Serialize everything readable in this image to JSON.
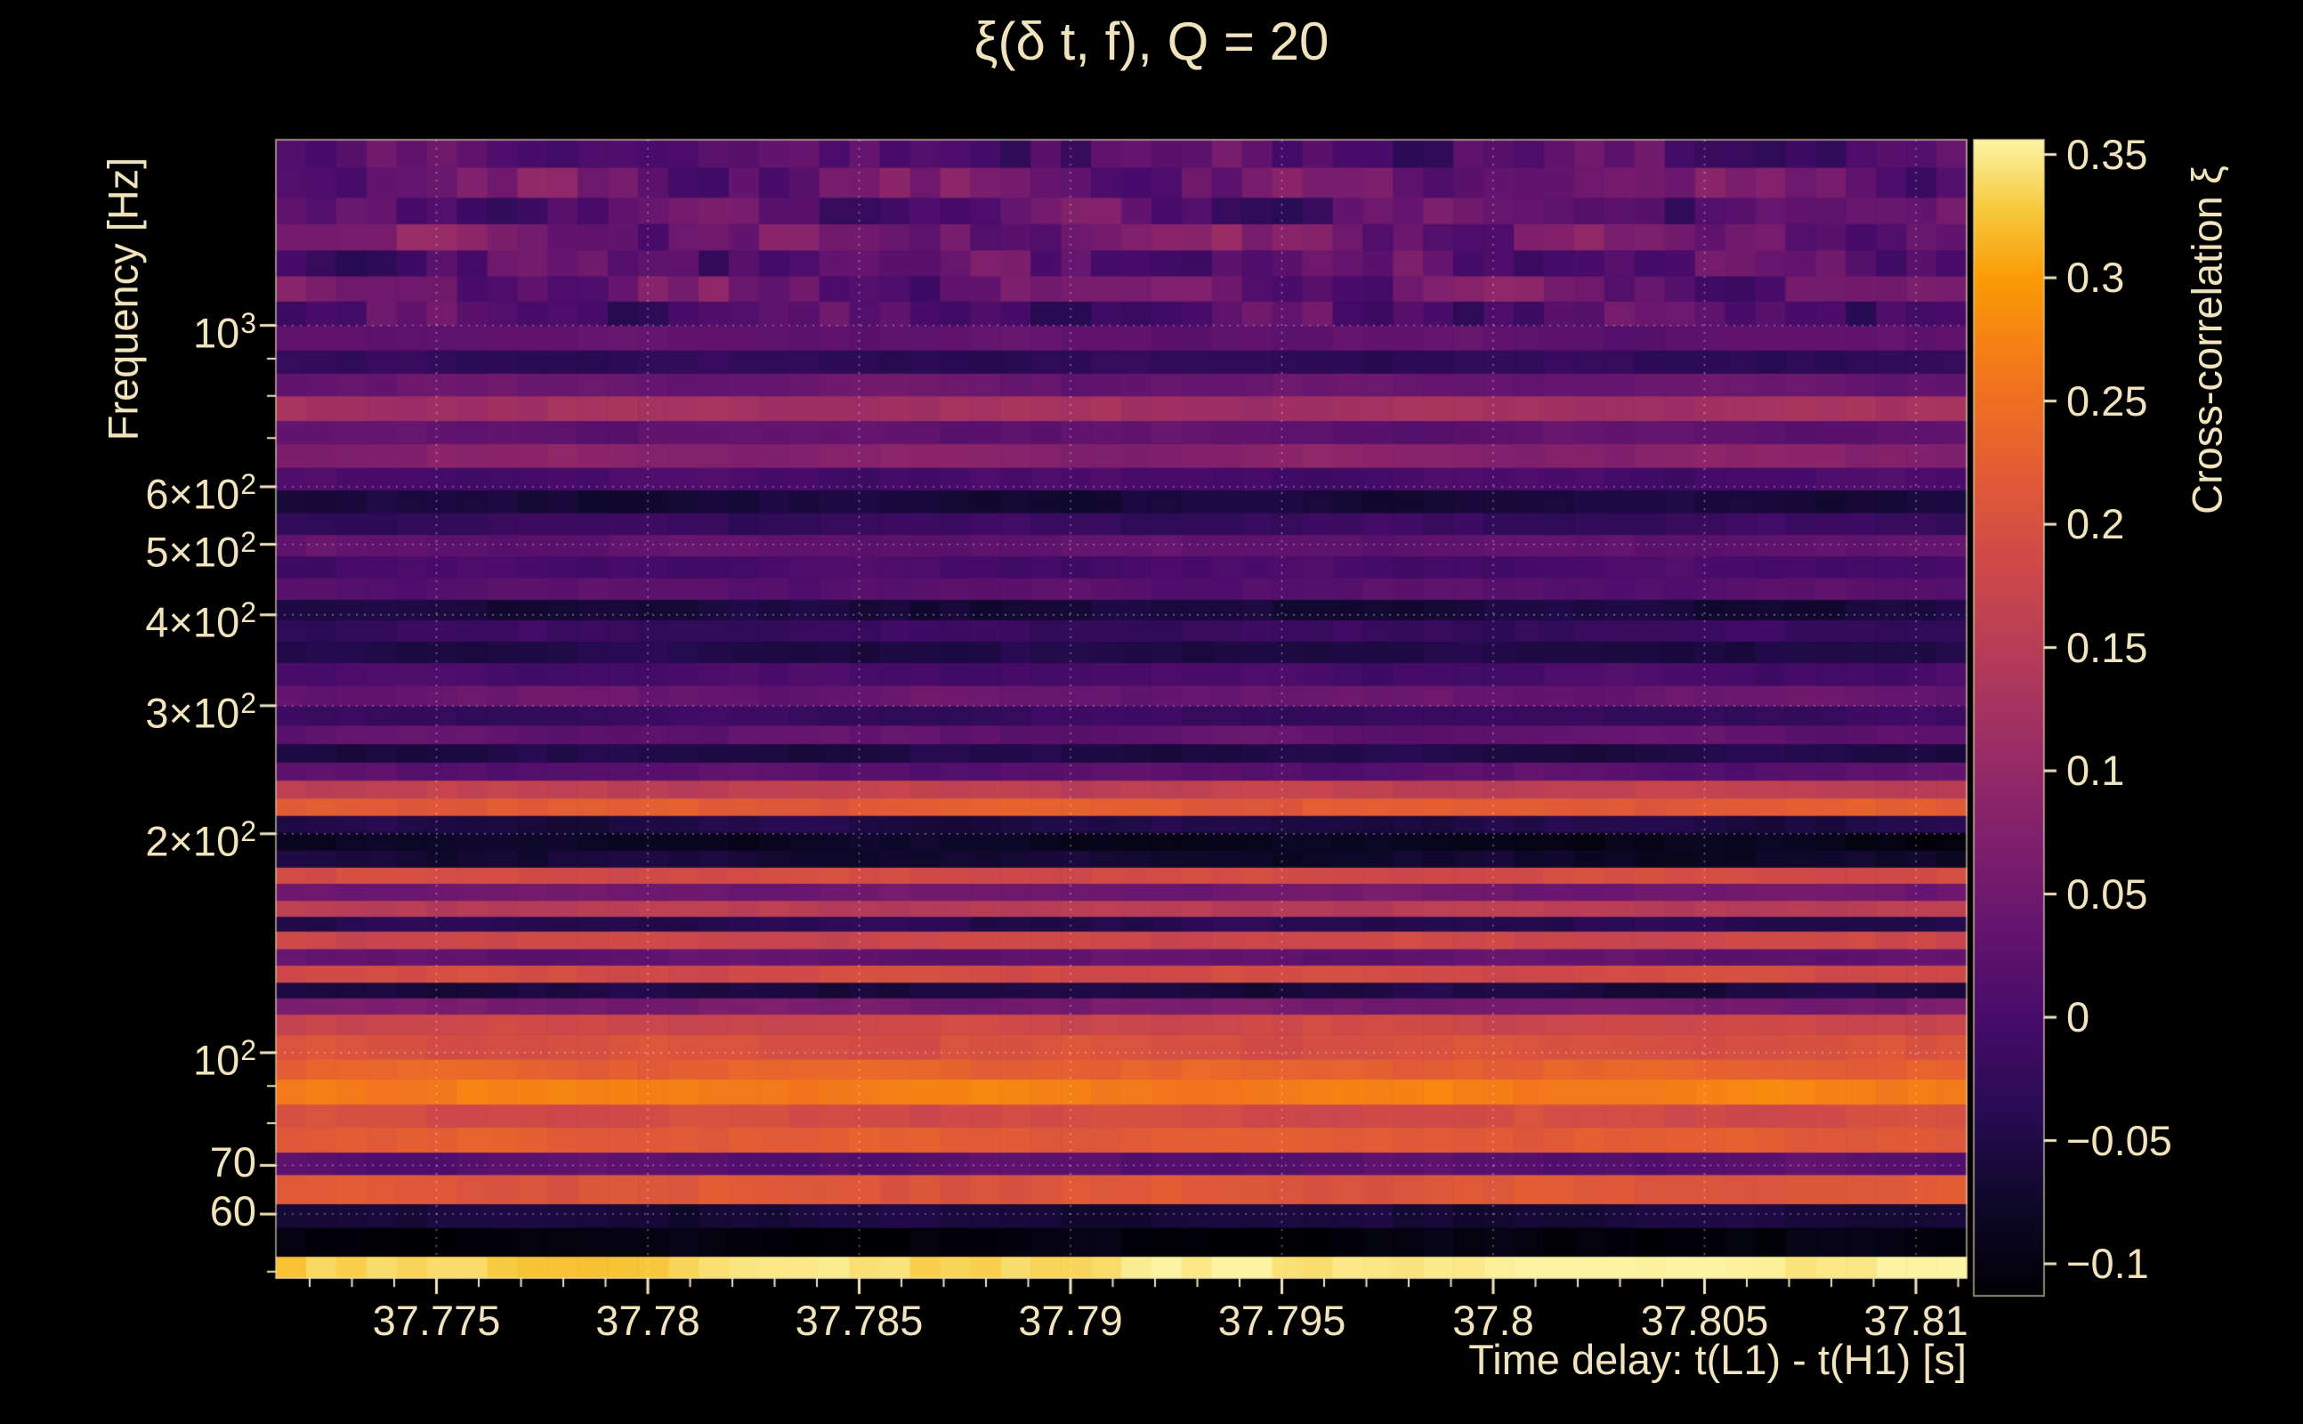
{
  "window": {
    "background": "#000000",
    "text_color": "#f1e4bd"
  },
  "chart_data": {
    "type": "heatmap",
    "title": "ξ(δ t, f), Q = 20",
    "xlabel": "Time delay: t(L1) - t(H1) [s]",
    "ylabel": "Frequency [Hz]",
    "colorbar_label": "Cross-correlation ξ",
    "x_range": [
      37.7712,
      37.8112
    ],
    "y_range": [
      49,
      1800
    ],
    "y_scale": "log",
    "grid": true,
    "x_ticks": [
      37.775,
      37.78,
      37.785,
      37.79,
      37.795,
      37.8,
      37.805,
      37.81
    ],
    "x_tick_labels": [
      "37.775",
      "37.78",
      "37.785",
      "37.79",
      "37.795",
      "37.8",
      "37.805",
      "37.81"
    ],
    "x_minor_step": 0.001,
    "y_ticks": [
      {
        "value": 1000,
        "base": "10",
        "exp": "3"
      },
      {
        "value": 600,
        "base": "6×10",
        "exp": "2"
      },
      {
        "value": 500,
        "base": "5×10",
        "exp": "2"
      },
      {
        "value": 400,
        "base": "4×10",
        "exp": "2"
      },
      {
        "value": 300,
        "base": "3×10",
        "exp": "2"
      },
      {
        "value": 200,
        "base": "2×10",
        "exp": "2"
      },
      {
        "value": 100,
        "base": "10",
        "exp": "2"
      },
      {
        "value": 70,
        "base": "70",
        "exp": ""
      },
      {
        "value": 60,
        "base": "60",
        "exp": ""
      }
    ],
    "y_minor_ticks": [
      50,
      60,
      70,
      80,
      90,
      100,
      200,
      300,
      400,
      500,
      600,
      700,
      800,
      900,
      1000
    ],
    "colorbar": {
      "range": [
        -0.113,
        0.356
      ],
      "ticks": [
        0.35,
        0.3,
        0.25,
        0.2,
        0.15,
        0.1,
        0.05,
        0,
        -0.05,
        -0.1
      ],
      "tick_labels": [
        "0.35",
        "0.3",
        "0.25",
        "0.2",
        "0.15",
        "0.1",
        "0.05",
        "0",
        "−0.05",
        "−0.1"
      ]
    },
    "colormap": [
      [
        0.0,
        "#000004"
      ],
      [
        0.08,
        "#0d0829"
      ],
      [
        0.16,
        "#280b53"
      ],
      [
        0.24,
        "#470b6a"
      ],
      [
        0.32,
        "#65156e"
      ],
      [
        0.4,
        "#81206c"
      ],
      [
        0.48,
        "#9c2e64"
      ],
      [
        0.56,
        "#b73d57"
      ],
      [
        0.64,
        "#d04a47"
      ],
      [
        0.72,
        "#e45e33"
      ],
      [
        0.8,
        "#f3771b"
      ],
      [
        0.88,
        "#fb9b06"
      ],
      [
        0.94,
        "#f7c93c"
      ],
      [
        1.0,
        "#fcf4a3"
      ]
    ],
    "time_bins": 56,
    "noise": {
      "low_amp": 0.013,
      "high_amp": 0.06,
      "high_freq_min": 950,
      "wave_low": 0.008,
      "wave_high": 0.03
    },
    "bands": [
      {
        "f0": 49,
        "f1": 52.5,
        "xi": 0.345,
        "trend": 0.03
      },
      {
        "f0": 52.5,
        "f1": 57.5,
        "xi": -0.105
      },
      {
        "f0": 57.5,
        "f1": 62,
        "xi": -0.06
      },
      {
        "f0": 62,
        "f1": 68,
        "xi": 0.21
      },
      {
        "f0": 68,
        "f1": 73,
        "xi": 0.02
      },
      {
        "f0": 73,
        "f1": 79,
        "xi": 0.22
      },
      {
        "f0": 79,
        "f1": 85,
        "xi": 0.19
      },
      {
        "f0": 85,
        "f1": 92,
        "xi": 0.27
      },
      {
        "f0": 92,
        "f1": 98,
        "xi": 0.23
      },
      {
        "f0": 98,
        "f1": 106,
        "xi": 0.2
      },
      {
        "f0": 106,
        "f1": 113,
        "xi": 0.18
      },
      {
        "f0": 113,
        "f1": 119,
        "xi": 0.06
      },
      {
        "f0": 119,
        "f1": 125,
        "xi": -0.055
      },
      {
        "f0": 125,
        "f1": 132,
        "xi": 0.19
      },
      {
        "f0": 132,
        "f1": 139,
        "xi": 0.03
      },
      {
        "f0": 139,
        "f1": 147,
        "xi": 0.18
      },
      {
        "f0": 147,
        "f1": 154,
        "xi": -0.04
      },
      {
        "f0": 154,
        "f1": 162,
        "xi": 0.15
      },
      {
        "f0": 162,
        "f1": 171,
        "xi": 0.05
      },
      {
        "f0": 171,
        "f1": 180,
        "xi": 0.19
      },
      {
        "f0": 180,
        "f1": 190,
        "xi": -0.07,
        "trend": -0.02
      },
      {
        "f0": 190,
        "f1": 201,
        "xi": -0.085,
        "trend": -0.02
      },
      {
        "f0": 201,
        "f1": 212,
        "xi": -0.05
      },
      {
        "f0": 212,
        "f1": 224,
        "xi": 0.22
      },
      {
        "f0": 224,
        "f1": 237,
        "xi": 0.16
      },
      {
        "f0": 237,
        "f1": 251,
        "xi": 0.02
      },
      {
        "f0": 251,
        "f1": 266,
        "xi": -0.05
      },
      {
        "f0": 266,
        "f1": 282,
        "xi": 0.03
      },
      {
        "f0": 282,
        "f1": 300,
        "xi": -0.02
      },
      {
        "f0": 300,
        "f1": 320,
        "xi": 0.04
      },
      {
        "f0": 320,
        "f1": 344,
        "xi": 0.0
      },
      {
        "f0": 344,
        "f1": 368,
        "xi": -0.05
      },
      {
        "f0": 368,
        "f1": 394,
        "xi": -0.02
      },
      {
        "f0": 394,
        "f1": 420,
        "xi": -0.06
      },
      {
        "f0": 420,
        "f1": 450,
        "xi": 0.02
      },
      {
        "f0": 450,
        "f1": 482,
        "xi": 0.0
      },
      {
        "f0": 482,
        "f1": 516,
        "xi": 0.03
      },
      {
        "f0": 516,
        "f1": 553,
        "xi": -0.02
      },
      {
        "f0": 553,
        "f1": 594,
        "xi": -0.06
      },
      {
        "f0": 594,
        "f1": 638,
        "xi": 0.0
      },
      {
        "f0": 638,
        "f1": 688,
        "xi": 0.08
      },
      {
        "f0": 688,
        "f1": 740,
        "xi": 0.03
      },
      {
        "f0": 740,
        "f1": 800,
        "xi": 0.12
      },
      {
        "f0": 800,
        "f1": 860,
        "xi": 0.04
      },
      {
        "f0": 860,
        "f1": 925,
        "xi": -0.03
      },
      {
        "f0": 925,
        "f1": 1000,
        "xi": 0.03
      },
      {
        "f0": 1000,
        "f1": 1080,
        "xi": 0.01
      },
      {
        "f0": 1080,
        "f1": 1170,
        "xi": 0.04
      },
      {
        "f0": 1170,
        "f1": 1270,
        "xi": 0.02
      },
      {
        "f0": 1270,
        "f1": 1380,
        "xi": 0.05
      },
      {
        "f0": 1380,
        "f1": 1500,
        "xi": 0.02
      },
      {
        "f0": 1500,
        "f1": 1650,
        "xi": 0.04
      },
      {
        "f0": 1650,
        "f1": 1800,
        "xi": 0.01
      }
    ]
  }
}
